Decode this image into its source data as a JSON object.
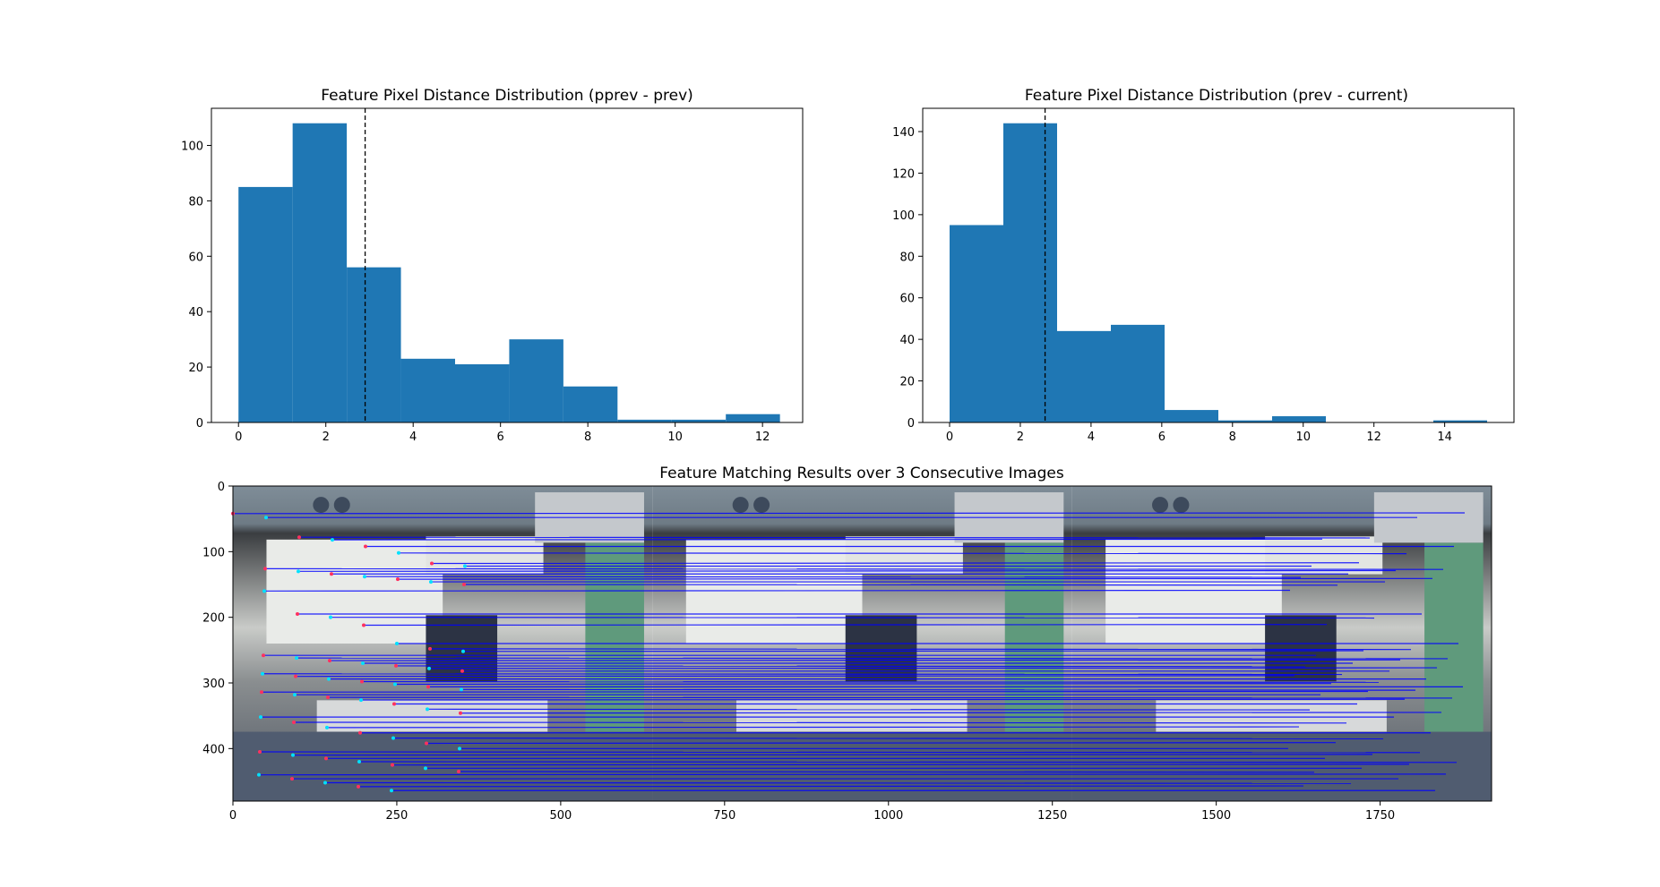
{
  "chart_data": [
    {
      "type": "bar",
      "title": "Feature Pixel Distance Distribution (pprev - prev)",
      "xlabel": "",
      "ylabel": "",
      "x_range": [
        -0.62,
        12.92
      ],
      "ylim": [
        0,
        113.4
      ],
      "bin_edges": [
        0,
        1.24,
        2.48,
        3.72,
        4.96,
        6.2,
        7.44,
        8.68,
        9.92,
        11.16,
        12.4
      ],
      "values": [
        85,
        108,
        56,
        23,
        21,
        30,
        13,
        1,
        1,
        3
      ],
      "vline": 2.9,
      "vline_style": "dashed",
      "xticks": [
        0,
        2,
        4,
        6,
        8,
        10,
        12
      ],
      "yticks": [
        0,
        20,
        40,
        60,
        80,
        100
      ],
      "bar_color": "#1f77b4",
      "grid": false
    },
    {
      "type": "bar",
      "title": "Feature Pixel Distance Distribution (prev - current)",
      "xlabel": "",
      "ylabel": "",
      "x_range": [
        -0.76,
        15.96
      ],
      "ylim": [
        0,
        151.2
      ],
      "bin_edges": [
        0,
        1.52,
        3.04,
        4.56,
        6.08,
        7.6,
        9.12,
        10.64,
        12.16,
        13.68,
        15.2
      ],
      "values": [
        95,
        144,
        44,
        47,
        6,
        1,
        3,
        0,
        0,
        1
      ],
      "vline": 2.7,
      "vline_style": "dashed",
      "xticks": [
        0,
        2,
        4,
        6,
        8,
        10,
        12,
        14
      ],
      "yticks": [
        0,
        20,
        40,
        60,
        80,
        100,
        120,
        140
      ],
      "bar_color": "#1f77b4",
      "grid": false
    },
    {
      "type": "image",
      "title": "Feature Matching Results over 3 Consecutive Images",
      "xlabel": "",
      "ylabel": "",
      "xlim": [
        0,
        1920
      ],
      "ylim": [
        480,
        0
      ],
      "xticks": [
        0,
        250,
        500,
        750,
        1000,
        1250,
        1500,
        1750
      ],
      "yticks": [
        0,
        100,
        200,
        300,
        400
      ],
      "panel_count": 3,
      "match_line_color": "#0000ff",
      "match_rows": [
        42,
        48,
        78,
        82,
        92,
        102,
        118,
        122,
        126,
        130,
        134,
        138,
        142,
        146,
        150,
        160,
        195,
        200,
        212,
        240,
        248,
        252,
        258,
        262,
        266,
        270,
        274,
        278,
        282,
        286,
        290,
        294,
        298,
        302,
        306,
        310,
        314,
        318,
        322,
        326,
        332,
        340,
        346,
        352,
        360,
        368,
        376,
        384,
        392,
        400,
        405,
        410,
        415,
        420,
        425,
        430,
        435,
        440,
        446,
        452,
        458,
        464
      ]
    }
  ]
}
